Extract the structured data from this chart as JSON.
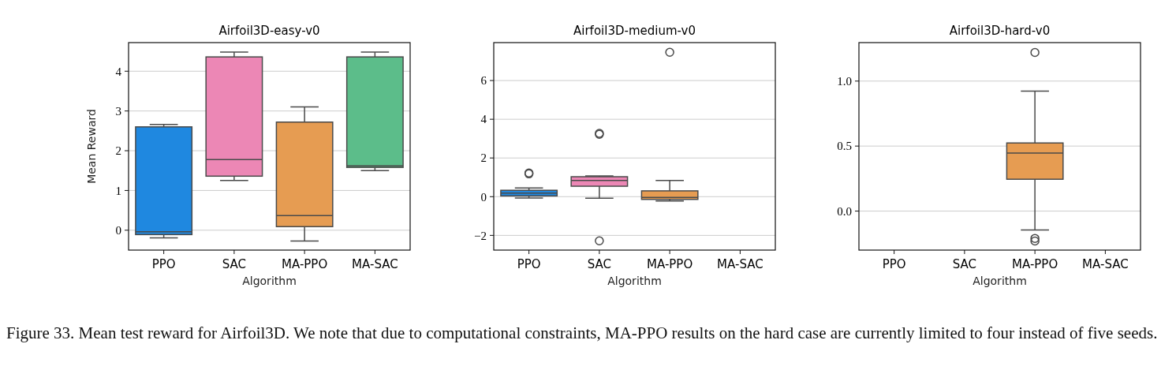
{
  "chart_data": [
    {
      "type": "box",
      "title": "Airfoil3D-easy-v0",
      "xlabel": "Algorithm",
      "ylabel": "Mean Reward",
      "categories": [
        "PPO",
        "SAC",
        "MA-PPO",
        "MA-SAC"
      ],
      "colors": [
        "#1f88e0",
        "#ec87b5",
        "#e69c52",
        "#5cbd8a"
      ],
      "boxes": [
        {
          "low": -0.19,
          "q1": -0.11,
          "median": -0.04,
          "q3": 2.6,
          "high": 2.66
        },
        {
          "low": 1.25,
          "q1": 1.36,
          "median": 1.78,
          "q3": 4.36,
          "high": 4.48
        },
        {
          "low": -0.27,
          "q1": 0.09,
          "median": 0.37,
          "q3": 2.72,
          "high": 3.1
        },
        {
          "low": 1.5,
          "q1": 1.58,
          "median": 1.62,
          "q3": 4.36,
          "high": 4.48
        }
      ],
      "ylim": [
        -0.5,
        4.72
      ],
      "yticks": [
        0,
        1,
        2,
        3,
        4
      ],
      "grid": "y",
      "annotations": [
        "Figure 33. Mean test reward for Airfoil3D. We note that due to computational constraints, MA-PPO results on the hard case are currently limited to four instead of five seeds."
      ]
    },
    {
      "type": "box",
      "title": "Airfoil3D-medium-v0",
      "xlabel": "Algorithm",
      "categories": [
        "PPO",
        "SAC",
        "MA-PPO",
        "MA-SAC"
      ],
      "colors": [
        "#1f88e0",
        "#ec87b5",
        "#e69c52",
        null
      ],
      "boxes": [
        {
          "low": -0.07,
          "q1": 0.04,
          "median": 0.19,
          "q3": 0.33,
          "high": 0.45,
          "outliers": [
            1.18,
            1.22
          ]
        },
        {
          "low": -0.08,
          "q1": 0.54,
          "median": 0.84,
          "q3": 1.03,
          "high": 1.07,
          "outliers": [
            3.22,
            3.27,
            -2.28
          ]
        },
        {
          "low": -0.22,
          "q1": -0.14,
          "median": -0.04,
          "q3": 0.3,
          "high": 0.84,
          "outliers": [
            7.46
          ]
        },
        null
      ],
      "ylim": [
        -2.76,
        7.96
      ],
      "yticks": [
        {
          "value": -2,
          "label": "−2"
        },
        0,
        2,
        4,
        6
      ],
      "grid": "y"
    },
    {
      "type": "box",
      "title": "Airfoil3D-hard-v0",
      "xlabel": "Algorithm",
      "categories": [
        "PPO",
        "SAC",
        "MA-PPO",
        "MA-SAC"
      ],
      "colors": [
        null,
        null,
        "#e69c52",
        null
      ],
      "boxes": [
        null,
        null,
        {
          "low": -0.146,
          "q1": 0.245,
          "median": 0.447,
          "q3": 0.524,
          "high": 0.923,
          "outliers": [
            1.22,
            -0.21,
            -0.23
          ]
        },
        null
      ],
      "ylim": [
        -0.3,
        1.296
      ],
      "yticks": [
        {
          "value": 0,
          "label": "0.0"
        },
        {
          "value": 0.5,
          "label": "0.5"
        },
        {
          "value": 1,
          "label": "1.0"
        }
      ],
      "grid": "y"
    }
  ]
}
